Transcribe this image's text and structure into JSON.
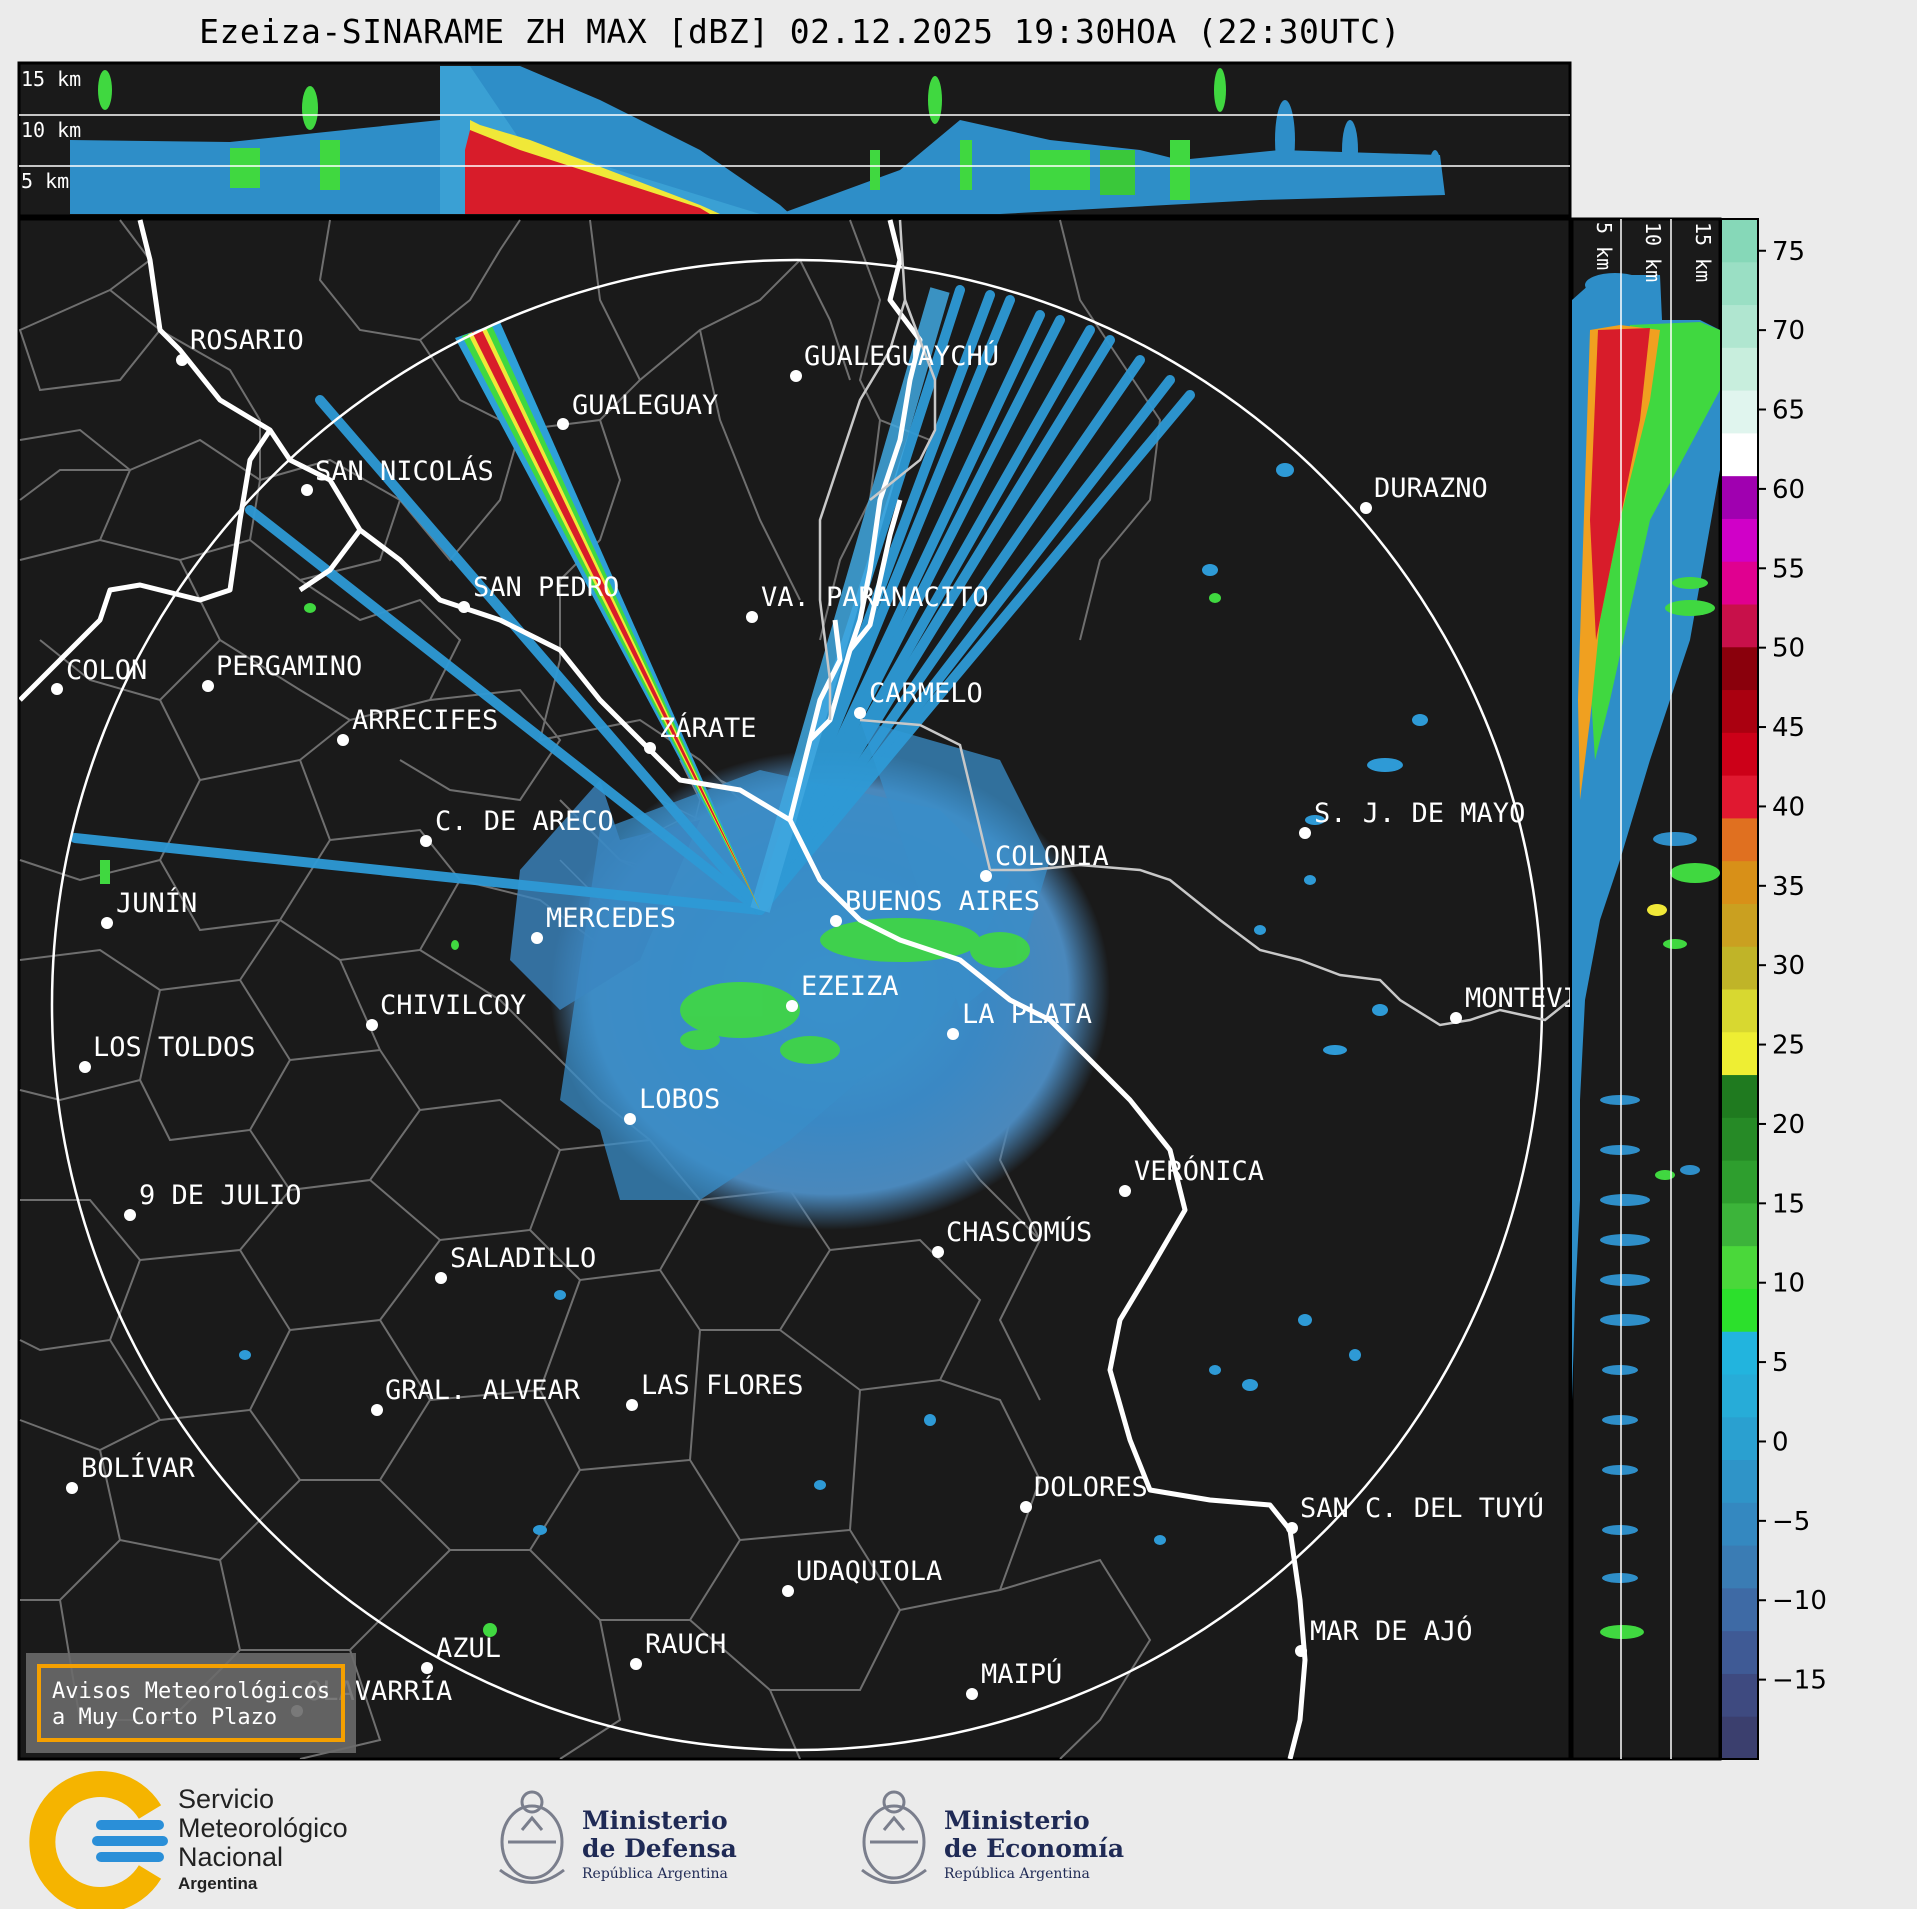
{
  "title": "Ezeiza-SINARAME ZH MAX [dBZ] 02.12.2025 19:30HOA (22:30UTC)",
  "top_panel": {
    "height_labels": [
      "15 km",
      "10 km",
      "5 km"
    ]
  },
  "side_panel": {
    "height_labels": [
      "5 km",
      "10 km",
      "15 km"
    ]
  },
  "colorbar": {
    "ticks": [
      "75",
      "70",
      "65",
      "60",
      "55",
      "50",
      "45",
      "40",
      "35",
      "30",
      "25",
      "20",
      "15",
      "10",
      "5",
      "0",
      "−5",
      "−10",
      "−15"
    ],
    "range_dbz": [
      -20,
      77
    ],
    "scale_colors": [
      "#3b3f6e",
      "#3e4a80",
      "#3f5a95",
      "#3e6aa5",
      "#3a7cb4",
      "#3488c0",
      "#2f94c8",
      "#2aa0d0",
      "#27acd8",
      "#22b4de",
      "#2ce02c",
      "#4ad83a",
      "#3cb43a",
      "#2e9e2e",
      "#268a26",
      "#1f7a1f",
      "#eeee33",
      "#d8d830",
      "#c0b428",
      "#caa020",
      "#d89018",
      "#e07020",
      "#e01830",
      "#cc0018",
      "#aa0010",
      "#8a000c",
      "#c8104a",
      "#e00090",
      "#d000c8",
      "#a000b0",
      "#ffffff",
      "#e0f5ee",
      "#c8eedd",
      "#b0e6d0",
      "#9adfc4",
      "#86d8b8"
    ]
  },
  "map": {
    "radar_site": "EZEIZA",
    "cities": [
      {
        "name": "ROSARIO"
      },
      {
        "name": "GUALEGUAYCHÚ"
      },
      {
        "name": "GUALEGUAY"
      },
      {
        "name": "SAN NICOLÁS"
      },
      {
        "name": "DURAZNO"
      },
      {
        "name": "SAN PEDRO"
      },
      {
        "name": "VA. PARANACITO"
      },
      {
        "name": "COLON"
      },
      {
        "name": "PERGAMINO"
      },
      {
        "name": "CARMELO"
      },
      {
        "name": "ARRECIFES"
      },
      {
        "name": "ZÁRATE"
      },
      {
        "name": "S. J. DE MAYO"
      },
      {
        "name": "C. DE ARECO"
      },
      {
        "name": "COLONIA"
      },
      {
        "name": "JUNÍN"
      },
      {
        "name": "BUENOS AIRES"
      },
      {
        "name": "MERCEDES"
      },
      {
        "name": "EZEIZA"
      },
      {
        "name": "MONTEVIDEO"
      },
      {
        "name": "CHIVILCOY"
      },
      {
        "name": "LA PLATA"
      },
      {
        "name": "LOS TOLDOS"
      },
      {
        "name": "LOBOS"
      },
      {
        "name": "VERÓNICA"
      },
      {
        "name": "9 DE JULIO"
      },
      {
        "name": "CHASCOMÚS"
      },
      {
        "name": "SALADILLO"
      },
      {
        "name": "GRAL. ALVEAR"
      },
      {
        "name": "LAS FLORES"
      },
      {
        "name": "BOLÍVAR"
      },
      {
        "name": "DOLORES"
      },
      {
        "name": "SAN C. DEL TUYÚ"
      },
      {
        "name": "UDAQUIOLA"
      },
      {
        "name": "MAR DE AJÓ"
      },
      {
        "name": "RAUCH"
      },
      {
        "name": "AZUL"
      },
      {
        "name": "OLAVARRÍA"
      },
      {
        "name": "MAIPÚ"
      }
    ]
  },
  "warning_box": {
    "line1": "Avisos Meteorológicos",
    "line2": "a Muy Corto Plazo"
  },
  "footer": {
    "smn": {
      "line1": "Servicio",
      "line2": "Meteorológico",
      "line3": "Nacional",
      "line4": "Argentina"
    },
    "defensa": {
      "line1": "Ministerio",
      "line2": "de Defensa",
      "line3": "República Argentina"
    },
    "economia": {
      "line1": "Ministerio",
      "line2": "de Economía",
      "line3": "República Argentina"
    }
  },
  "colors": {
    "panel_bg": "#1a1a1a",
    "page_bg": "#ebebeb",
    "warning_border": "#f5a000",
    "smn_yellow": "#f5b400",
    "smn_blue": "#2a8fd8",
    "ministry_navy": "#1f2a55"
  }
}
